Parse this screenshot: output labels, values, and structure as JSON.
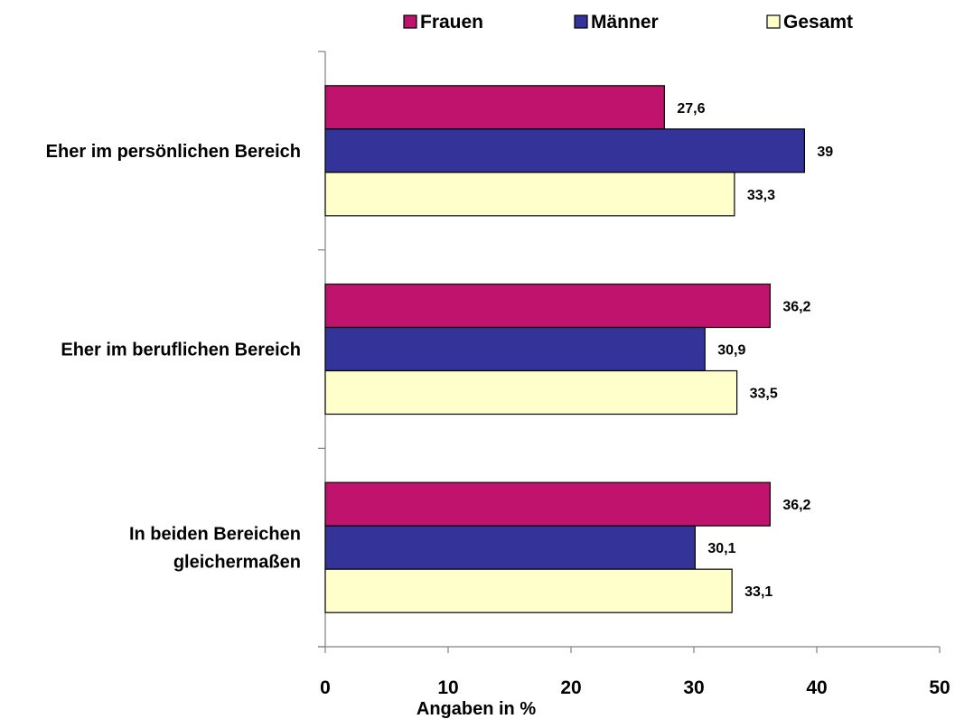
{
  "chart_data": {
    "type": "bar",
    "orientation": "horizontal",
    "categories": [
      [
        "Eher im persönlichen Bereich"
      ],
      [
        "Eher im beruflichen Bereich"
      ],
      [
        "In beiden Bereichen",
        "gleichermaßen"
      ]
    ],
    "series": [
      {
        "name": "Frauen",
        "color": "#C0136E",
        "values": [
          27.6,
          36.2,
          36.2
        ],
        "labels": [
          "27,6",
          "36,2",
          "36,2"
        ]
      },
      {
        "name": "Männer",
        "color": "#333399",
        "values": [
          39,
          30.9,
          30.1
        ],
        "labels": [
          "39",
          "30,9",
          "30,1"
        ]
      },
      {
        "name": "Gesamt",
        "color": "#FFFFCC",
        "values": [
          33.3,
          33.5,
          33.1
        ],
        "labels": [
          "33,3",
          "33,5",
          "33,1"
        ]
      }
    ],
    "xlim": [
      0,
      50
    ],
    "xticks": [
      0,
      10,
      20,
      30,
      40,
      50
    ],
    "xlabel": "Angaben in %",
    "ylabel": "",
    "title": "",
    "grid": false,
    "legend_position": "top"
  }
}
